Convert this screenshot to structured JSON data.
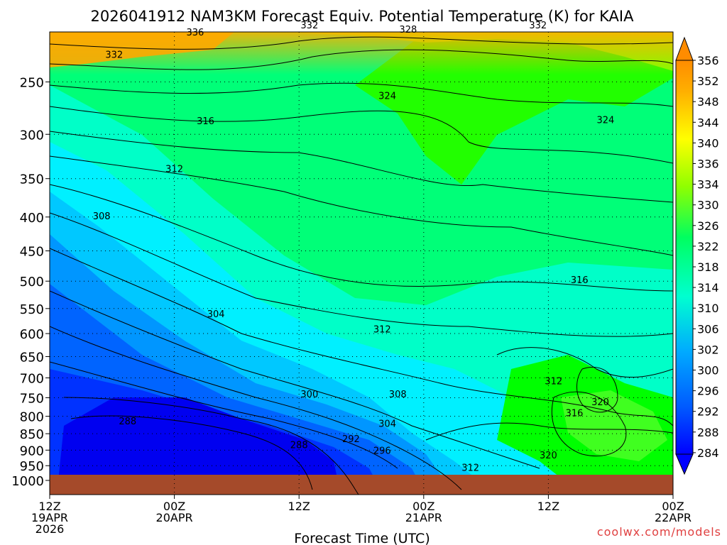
{
  "chart_data": {
    "type": "heatmap",
    "title": "2026041912 NAM3KM Forecast Equiv. Potential Temperature (K) for KAIA",
    "xlabel": "Forecast Time (UTC)",
    "ylabel": "",
    "credit": "coolwx.com/models",
    "y_scale": "log-pressure",
    "y_range": [
      1000,
      200
    ],
    "y_ticks": [
      250,
      300,
      350,
      400,
      450,
      500,
      550,
      600,
      650,
      700,
      750,
      800,
      850,
      900,
      950,
      1000
    ],
    "x_range_hours": [
      0,
      60
    ],
    "x_ticks": [
      {
        "hour": 0,
        "lines": [
          "12Z",
          "19APR",
          "2026"
        ]
      },
      {
        "hour": 12,
        "lines": [
          "00Z",
          "20APR"
        ]
      },
      {
        "hour": 24,
        "lines": [
          "12Z"
        ]
      },
      {
        "hour": 36,
        "lines": [
          "00Z",
          "21APR"
        ]
      },
      {
        "hour": 48,
        "lines": [
          "12Z"
        ]
      },
      {
        "hour": 60,
        "lines": [
          "00Z",
          "22APR"
        ]
      }
    ],
    "grid": "dotted",
    "colorbar": {
      "placement": "right",
      "min": 284,
      "max": 356,
      "step": 2,
      "labels": [
        356,
        352,
        348,
        344,
        340,
        336,
        334,
        330,
        326,
        322,
        318,
        314,
        310,
        306,
        302,
        300,
        296,
        292,
        288,
        284
      ]
    },
    "contour_labels": [
      {
        "value": "336",
        "hour": 14.0,
        "p": 210
      },
      {
        "value": "332",
        "hour": 6.2,
        "p": 227
      },
      {
        "value": "332",
        "hour": 25.0,
        "p": 205
      },
      {
        "value": "328",
        "hour": 34.5,
        "p": 208
      },
      {
        "value": "332",
        "hour": 47.0,
        "p": 205
      },
      {
        "value": "324",
        "hour": 32.5,
        "p": 262
      },
      {
        "value": "324",
        "hour": 53.5,
        "p": 285
      },
      {
        "value": "316",
        "hour": 15.0,
        "p": 286
      },
      {
        "value": "312",
        "hour": 12.0,
        "p": 338
      },
      {
        "value": "308",
        "hour": 5.0,
        "p": 398
      },
      {
        "value": "316",
        "hour": 51.0,
        "p": 497
      },
      {
        "value": "304",
        "hour": 16.0,
        "p": 560
      },
      {
        "value": "312",
        "hour": 32.0,
        "p": 590
      },
      {
        "value": "312",
        "hour": 48.5,
        "p": 707
      },
      {
        "value": "300",
        "hour": 25.0,
        "p": 740
      },
      {
        "value": "308",
        "hour": 33.5,
        "p": 740
      },
      {
        "value": "320",
        "hour": 53.0,
        "p": 760
      },
      {
        "value": "316",
        "hour": 50.5,
        "p": 790
      },
      {
        "value": "288",
        "hour": 7.5,
        "p": 813
      },
      {
        "value": "304",
        "hour": 32.5,
        "p": 820
      },
      {
        "value": "292",
        "hour": 29.0,
        "p": 865
      },
      {
        "value": "288",
        "hour": 24.0,
        "p": 883
      },
      {
        "value": "296",
        "hour": 32.0,
        "p": 900
      },
      {
        "value": "320",
        "hour": 48.0,
        "p": 915
      },
      {
        "value": "312",
        "hour": 40.5,
        "p": 955
      }
    ]
  }
}
